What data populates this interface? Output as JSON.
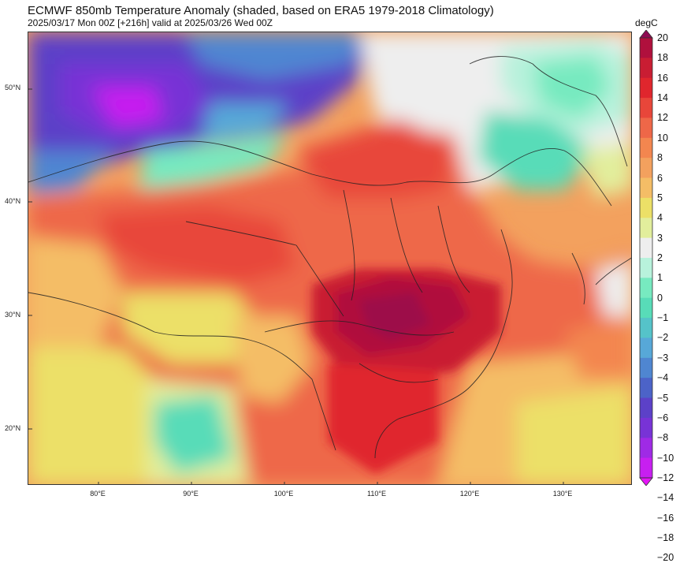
{
  "header": {
    "title": "ECMWF 850mb Temperature Anomaly (shaded, based on ERA5 1979-2018 Climatology)",
    "subtitle": "2025/03/17 Mon 00Z [+216h] valid at 2025/03/26 Wed 00Z"
  },
  "map": {
    "lat_labels": [
      "50°N",
      "40°N",
      "30°N",
      "20°N"
    ],
    "lon_labels": [
      "80°E",
      "90°E",
      "100°E",
      "110°E",
      "120°E",
      "130°E"
    ]
  },
  "colorbar": {
    "unit": "degC",
    "ticks": [
      "20",
      "18",
      "16",
      "14",
      "12",
      "10",
      "8",
      "6",
      "5",
      "4",
      "3",
      "2",
      "1",
      "0",
      "−1",
      "−2",
      "−3",
      "−4",
      "−5",
      "−6",
      "−8",
      "−10",
      "−12",
      "−14",
      "−16",
      "−18",
      "−20"
    ],
    "colors": [
      "#8e0b52",
      "#b0103d",
      "#c91d33",
      "#e0262d",
      "#e8463a",
      "#ee6748",
      "#f3864f",
      "#f3a15e",
      "#f4bd66",
      "#ece067",
      "#e2ee9c",
      "#eeeeee",
      "#b8f2dc",
      "#77eac0",
      "#58dcb8",
      "#55c3c9",
      "#57a8d8",
      "#4f86d1",
      "#4c63c8",
      "#5c41c8",
      "#7833d6",
      "#9f2ae5",
      "#c71ff0",
      "#e515f7"
    ]
  }
}
